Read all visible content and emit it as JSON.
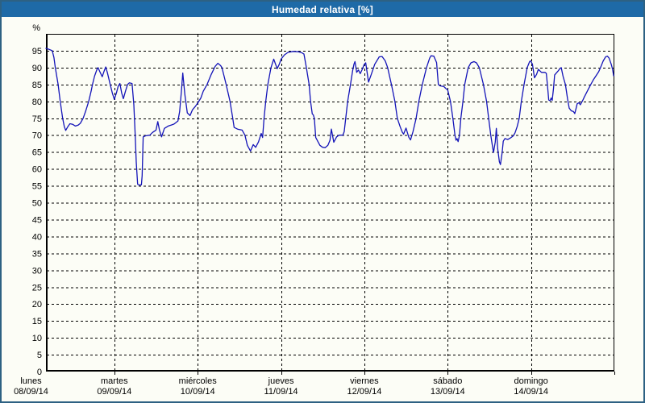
{
  "header": {
    "title": "Humedad relativa [%]"
  },
  "colors": {
    "frame_border": "#2d6183",
    "titlebar_bg": "#1e6aa7",
    "titlebar_text": "#ffffff",
    "background": "#fcfdf6",
    "grid": "#000000",
    "line": "#1414b8"
  },
  "chart_data": {
    "type": "line",
    "title": "Humedad relativa [%]",
    "ylabel": "%",
    "xlabel": "",
    "ylim": [
      0,
      100
    ],
    "y_ticks": [
      0,
      5,
      10,
      15,
      20,
      25,
      30,
      35,
      40,
      45,
      50,
      55,
      60,
      65,
      70,
      75,
      80,
      85,
      90,
      95
    ],
    "grid": "dashed",
    "legend": "none",
    "x_days": [
      {
        "name": "lunes",
        "date": "08/09/14"
      },
      {
        "name": "martes",
        "date": "09/09/14"
      },
      {
        "name": "miércoles",
        "date": "10/09/14"
      },
      {
        "name": "jueves",
        "date": "11/09/14"
      },
      {
        "name": "viernes",
        "date": "12/09/14"
      },
      {
        "name": "sábado",
        "date": "13/09/14"
      },
      {
        "name": "domingo",
        "date": "14/09/14"
      }
    ],
    "t_unit": "hours_from_monday_00",
    "t_start": 4.3,
    "t_end": 168,
    "series": [
      {
        "name": "Humedad relativa",
        "points": [
          [
            4.3,
            95.7
          ],
          [
            5.2,
            95.4
          ],
          [
            6.1,
            95.0
          ],
          [
            6.6,
            93.0
          ],
          [
            7.0,
            90.0
          ],
          [
            7.8,
            85.0
          ],
          [
            8.4,
            80.0
          ],
          [
            9.1,
            75.0
          ],
          [
            9.6,
            72.5
          ],
          [
            10.0,
            71.4
          ],
          [
            10.6,
            72.5
          ],
          [
            11.2,
            73.4
          ],
          [
            12.0,
            73.2
          ],
          [
            12.8,
            72.7
          ],
          [
            13.6,
            73.0
          ],
          [
            14.2,
            73.5
          ],
          [
            15.0,
            75.0
          ],
          [
            15.8,
            77.3
          ],
          [
            16.6,
            80.0
          ],
          [
            17.3,
            83.0
          ],
          [
            17.7,
            85.0
          ],
          [
            18.3,
            87.5
          ],
          [
            19.0,
            89.5
          ],
          [
            19.3,
            90.0
          ],
          [
            19.8,
            88.8
          ],
          [
            20.5,
            87.3
          ],
          [
            21.0,
            88.8
          ],
          [
            21.5,
            90.2
          ],
          [
            22.0,
            88.5
          ],
          [
            22.8,
            85.0
          ],
          [
            23.4,
            82.5
          ],
          [
            24.0,
            80.6
          ],
          [
            24.6,
            82.5
          ],
          [
            25.1,
            84.5
          ],
          [
            25.6,
            85.3
          ],
          [
            26.1,
            82.5
          ],
          [
            26.6,
            80.8
          ],
          [
            27.2,
            83.0
          ],
          [
            27.8,
            85.0
          ],
          [
            28.3,
            85.5
          ],
          [
            29.1,
            85.3
          ],
          [
            29.6,
            79.0
          ],
          [
            30.0,
            70.0
          ],
          [
            30.3,
            62.0
          ],
          [
            30.7,
            55.5
          ],
          [
            31.2,
            55.2
          ],
          [
            31.8,
            55.3
          ],
          [
            32.0,
            58.0
          ],
          [
            32.3,
            69.5
          ],
          [
            33.0,
            69.8
          ],
          [
            34.2,
            70.0
          ],
          [
            35.0,
            70.8
          ],
          [
            36.0,
            71.5
          ],
          [
            36.5,
            74.0
          ],
          [
            37.0,
            71.5
          ],
          [
            37.6,
            69.5
          ],
          [
            38.4,
            72.0
          ],
          [
            39.5,
            72.7
          ],
          [
            40.4,
            73.0
          ],
          [
            41.2,
            73.3
          ],
          [
            42.3,
            74.2
          ],
          [
            42.8,
            77.0
          ],
          [
            43.3,
            83.0
          ],
          [
            43.7,
            88.4
          ],
          [
            44.3,
            82.0
          ],
          [
            45.0,
            76.6
          ],
          [
            45.8,
            75.8
          ],
          [
            46.5,
            77.5
          ],
          [
            47.3,
            78.5
          ],
          [
            48.0,
            79.5
          ],
          [
            48.9,
            81.0
          ],
          [
            49.6,
            83.0
          ],
          [
            50.7,
            85.0
          ],
          [
            51.9,
            88.0
          ],
          [
            53.0,
            90.3
          ],
          [
            53.8,
            91.3
          ],
          [
            54.6,
            90.6
          ],
          [
            55.0,
            90.0
          ],
          [
            56.2,
            85.0
          ],
          [
            57.3,
            80.0
          ],
          [
            58.1,
            75.0
          ],
          [
            58.5,
            72.3
          ],
          [
            59.5,
            71.8
          ],
          [
            60.8,
            71.5
          ],
          [
            61.6,
            70.0
          ],
          [
            62.3,
            67.0
          ],
          [
            63.2,
            65.3
          ],
          [
            64.0,
            67.2
          ],
          [
            64.7,
            66.4
          ],
          [
            65.5,
            68.0
          ],
          [
            66.3,
            70.5
          ],
          [
            66.7,
            69.3
          ],
          [
            67.1,
            75.0
          ],
          [
            67.6,
            80.0
          ],
          [
            68.2,
            85.0
          ],
          [
            69.1,
            90.0
          ],
          [
            69.9,
            92.5
          ],
          [
            70.9,
            89.7
          ],
          [
            71.5,
            91.0
          ],
          [
            72.0,
            92.5
          ],
          [
            73.0,
            93.8
          ],
          [
            74.0,
            94.5
          ],
          [
            75.5,
            94.8
          ],
          [
            77.0,
            94.7
          ],
          [
            78.0,
            94.4
          ],
          [
            78.6,
            94.0
          ],
          [
            79.3,
            90.0
          ],
          [
            80.1,
            85.0
          ],
          [
            80.5,
            80.0
          ],
          [
            81.0,
            76.3
          ],
          [
            81.3,
            76.0
          ],
          [
            81.6,
            75.0
          ],
          [
            82.0,
            69.3
          ],
          [
            83.2,
            67.0
          ],
          [
            84.0,
            66.4
          ],
          [
            84.7,
            66.3
          ],
          [
            85.5,
            67.0
          ],
          [
            86.1,
            68.5
          ],
          [
            86.5,
            71.8
          ],
          [
            87.2,
            67.9
          ],
          [
            88.0,
            69.5
          ],
          [
            88.7,
            70.0
          ],
          [
            89.8,
            70.0
          ],
          [
            90.2,
            71.0
          ],
          [
            91.2,
            80.0
          ],
          [
            92.0,
            85.0
          ],
          [
            92.6,
            89.0
          ],
          [
            93.0,
            91.0
          ],
          [
            93.3,
            91.8
          ],
          [
            93.8,
            88.6
          ],
          [
            94.3,
            89.3
          ],
          [
            94.8,
            88.2
          ],
          [
            95.4,
            89.5
          ],
          [
            95.8,
            90.6
          ],
          [
            96.0,
            91.0
          ],
          [
            96.4,
            91.4
          ],
          [
            97.2,
            85.7
          ],
          [
            98.0,
            88.0
          ],
          [
            99.0,
            91.0
          ],
          [
            100.3,
            93.2
          ],
          [
            101.1,
            93.3
          ],
          [
            102.0,
            92.0
          ],
          [
            102.7,
            90.0
          ],
          [
            103.8,
            85.0
          ],
          [
            104.8,
            80.0
          ],
          [
            105.5,
            75.0
          ],
          [
            106.3,
            72.5
          ],
          [
            106.9,
            70.9
          ],
          [
            107.3,
            70.3
          ],
          [
            108.0,
            72.1
          ],
          [
            108.8,
            69.4
          ],
          [
            109.3,
            68.6
          ],
          [
            110.0,
            71.0
          ],
          [
            110.9,
            75.0
          ],
          [
            111.7,
            80.0
          ],
          [
            112.7,
            85.0
          ],
          [
            113.9,
            90.0
          ],
          [
            114.8,
            92.8
          ],
          [
            115.2,
            93.5
          ],
          [
            116.0,
            93.4
          ],
          [
            116.8,
            91.5
          ],
          [
            117.3,
            85.0
          ],
          [
            117.8,
            84.6
          ],
          [
            118.9,
            84.4
          ],
          [
            119.5,
            83.8
          ],
          [
            120.0,
            83.4
          ],
          [
            120.8,
            80.0
          ],
          [
            121.5,
            75.0
          ],
          [
            122.1,
            70.0
          ],
          [
            122.4,
            68.5
          ],
          [
            122.7,
            69.0
          ],
          [
            123.0,
            68.1
          ],
          [
            123.4,
            70.0
          ],
          [
            123.8,
            75.0
          ],
          [
            124.4,
            80.0
          ],
          [
            124.9,
            85.0
          ],
          [
            125.9,
            90.0
          ],
          [
            126.7,
            91.4
          ],
          [
            127.6,
            91.8
          ],
          [
            128.3,
            91.4
          ],
          [
            129.1,
            90.0
          ],
          [
            130.3,
            85.0
          ],
          [
            131.2,
            80.0
          ],
          [
            131.8,
            75.0
          ],
          [
            132.4,
            70.0
          ],
          [
            133.0,
            66.0
          ],
          [
            133.2,
            64.9
          ],
          [
            133.7,
            68.0
          ],
          [
            134.0,
            72.0
          ],
          [
            134.4,
            66.0
          ],
          [
            134.9,
            62.1
          ],
          [
            135.2,
            61.3
          ],
          [
            135.7,
            65.0
          ],
          [
            136.0,
            68.2
          ],
          [
            136.5,
            69.0
          ],
          [
            137.3,
            68.7
          ],
          [
            138.1,
            69.2
          ],
          [
            138.9,
            69.8
          ],
          [
            139.4,
            70.7
          ],
          [
            140.0,
            72.5
          ],
          [
            140.6,
            75.0
          ],
          [
            141.2,
            80.0
          ],
          [
            142.0,
            85.0
          ],
          [
            142.9,
            90.0
          ],
          [
            143.6,
            91.8
          ],
          [
            143.9,
            92.0
          ],
          [
            144.4,
            91.0
          ],
          [
            145.0,
            87.0
          ],
          [
            145.6,
            88.0
          ],
          [
            146.1,
            89.5
          ],
          [
            147.0,
            88.6
          ],
          [
            148.0,
            88.6
          ],
          [
            148.4,
            88.3
          ],
          [
            148.8,
            84.0
          ],
          [
            149.1,
            80.4
          ],
          [
            149.5,
            80.2
          ],
          [
            149.8,
            81.0
          ],
          [
            150.1,
            80.3
          ],
          [
            150.5,
            84.0
          ],
          [
            150.8,
            87.8
          ],
          [
            151.8,
            89.0
          ],
          [
            152.4,
            89.8
          ],
          [
            152.7,
            90.0
          ],
          [
            153.2,
            87.5
          ],
          [
            153.9,
            85.0
          ],
          [
            154.5,
            80.8
          ],
          [
            155.0,
            78.0
          ],
          [
            155.6,
            77.2
          ],
          [
            156.2,
            77.0
          ],
          [
            156.6,
            76.4
          ],
          [
            157.0,
            78.0
          ],
          [
            157.3,
            79.3
          ],
          [
            157.8,
            79.6
          ],
          [
            158.2,
            79.0
          ],
          [
            159.0,
            80.5
          ],
          [
            159.3,
            81.2
          ],
          [
            160.2,
            83.0
          ],
          [
            161.2,
            85.0
          ],
          [
            162.0,
            86.5
          ],
          [
            162.8,
            87.7
          ],
          [
            163.5,
            88.8
          ],
          [
            164.0,
            90.0
          ],
          [
            164.8,
            92.0
          ],
          [
            165.5,
            93.2
          ],
          [
            166.0,
            93.4
          ],
          [
            166.5,
            92.8
          ],
          [
            167.1,
            91.0
          ],
          [
            167.5,
            89.5
          ],
          [
            167.8,
            87.6
          ]
        ]
      }
    ]
  }
}
